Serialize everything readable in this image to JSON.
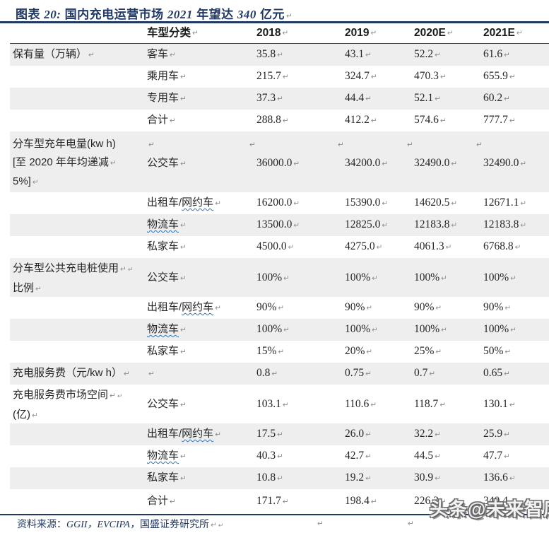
{
  "title": {
    "segments": [
      {
        "text": "图表 ",
        "italic": false
      },
      {
        "text": "20:",
        "italic": true
      },
      {
        "text": "  国内充电运营市场 ",
        "italic": false
      },
      {
        "text": "2021",
        "italic": true
      },
      {
        "text": " 年望达 ",
        "italic": false
      },
      {
        "text": "340",
        "italic": true
      },
      {
        "text": " 亿元",
        "italic": false
      }
    ]
  },
  "icons": {
    "return_mark": "↵"
  },
  "colors": {
    "navy": "#1F3864",
    "row_band": "#EEEEEE",
    "body_text": "#262626",
    "mark_gray": "#8F8F8F",
    "wavy_blue": "#2E74B5"
  },
  "table": {
    "header": {
      "cols": [
        "",
        "车型分类",
        "2018",
        "2019",
        "2020E",
        "2021E"
      ]
    },
    "rows": [
      {
        "label": "保有量（万辆）",
        "cat": "客车",
        "vals": [
          "35.8",
          "43.1",
          "52.2",
          "61.6"
        ]
      },
      {
        "cat": "乘用车",
        "vals": [
          "215.7",
          "324.7",
          "470.3",
          "655.9"
        ]
      },
      {
        "cat": "专用车",
        "vals": [
          "37.3",
          "44.4",
          "52.1",
          "60.2"
        ]
      },
      {
        "cat": "合计",
        "vals": [
          "288.8",
          "412.2",
          "574.6",
          "777.7"
        ]
      },
      {
        "labelLines": [
          {
            "text": "分车型充年电量(kw h)",
            "marks": 0
          },
          {
            "text": "[至 2020 年年均递减",
            "marks": 1
          },
          {
            "text": "5%]",
            "marks": 1
          }
        ],
        "cat": "公交车",
        "vals": [
          "36000.0",
          "34200.0",
          "32490.0",
          "32490.0"
        ]
      },
      {
        "cat": "出租车/",
        "catWavy": "网约车",
        "vals": [
          "16200.0",
          "15390.0",
          "14620.5",
          "12671.1"
        ]
      },
      {
        "cat": "",
        "catWavy": "物流车",
        "vals": [
          "13500.0",
          "12825.0",
          "12183.8",
          "12183.8"
        ]
      },
      {
        "cat": "私家车",
        "vals": [
          "4500.0",
          "4275.0",
          "4061.3",
          "6768.8"
        ]
      },
      {
        "labelLines": [
          {
            "text": "分车型公共充电桩使用",
            "marks": 2
          },
          {
            "text": "比例",
            "marks": 1
          }
        ],
        "cat": "公交车",
        "vals": [
          "100%",
          "100%",
          "100%",
          "100%"
        ]
      },
      {
        "cat": "出租车/",
        "catWavy": "网约车",
        "vals": [
          "90%",
          "90%",
          "90%",
          "90%"
        ]
      },
      {
        "cat": "",
        "catWavy": "物流车",
        "vals": [
          "100%",
          "100%",
          "100%",
          "100%"
        ]
      },
      {
        "cat": "私家车",
        "vals": [
          "15%",
          "20%",
          "25%",
          "50%"
        ]
      },
      {
        "label": "充电服务费（元/kw h）",
        "cat": "",
        "vals": [
          "0.8",
          "0.75",
          "0.7",
          "0.65"
        ]
      },
      {
        "labelLines": [
          {
            "text": "充电服务费市场空间",
            "marks": 2
          },
          {
            "text": "(亿)",
            "marks": 1
          }
        ],
        "cat": "公交车",
        "vals": [
          "103.1",
          "110.6",
          "118.7",
          "130.1"
        ]
      },
      {
        "cat": "出租车/",
        "catWavy": "网约车",
        "vals": [
          "17.5",
          "26.0",
          "32.2",
          "25.9"
        ]
      },
      {
        "cat": "",
        "catWavy": "物流车",
        "vals": [
          "40.3",
          "42.7",
          "44.5",
          "47.7"
        ]
      },
      {
        "cat": "私家车",
        "vals": [
          "10.8",
          "19.2",
          "30.9",
          "136.6"
        ]
      },
      {
        "cat": "合计",
        "vals": [
          "171.7",
          "198.4",
          "226.3",
          "340.4"
        ]
      }
    ]
  },
  "footer": {
    "prefix": "资料来源：",
    "sources_italic": "GGII，EVCIPA，",
    "suffix": "国盛证券研究所"
  },
  "watermark": {
    "text": "头条@未来智库"
  }
}
